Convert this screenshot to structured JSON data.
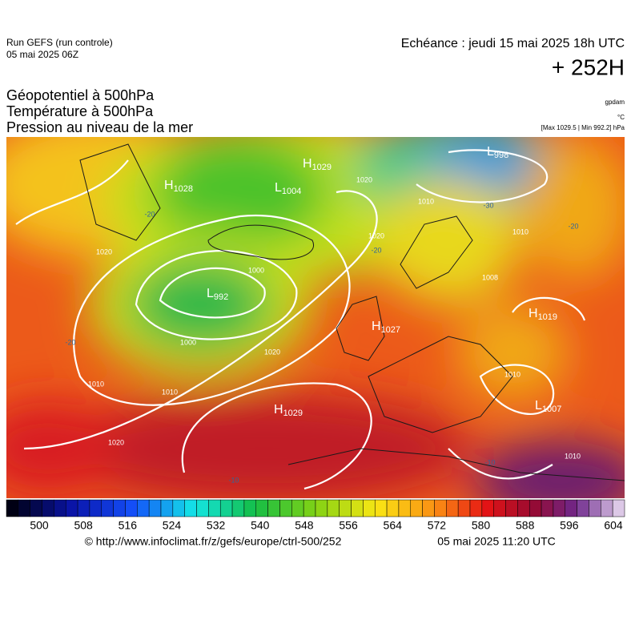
{
  "header": {
    "run": "Run GEFS (run controle)",
    "date": "05 mai 2025 06Z",
    "echeance": "Echéance : jeudi 15 mai 2025 18h UTC",
    "lead": "+ 252H"
  },
  "titles": [
    "Géopotentiel à 500hPa",
    "Température à 500hPa",
    "Pression au niveau de la mer"
  ],
  "units": {
    "geopotential": "gpdam",
    "temperature": "°C",
    "pressure": "[Max 1029.5 | Min 992.2] hPa"
  },
  "map": {
    "centers": [
      {
        "type": "H",
        "value": "1029"
      },
      {
        "type": "L",
        "value": "1004"
      },
      {
        "type": "L",
        "value": "992"
      },
      {
        "type": "H",
        "value": "1029"
      },
      {
        "type": "H",
        "value": "1019"
      },
      {
        "type": "L",
        "value": "1007"
      },
      {
        "type": "L",
        "value": "998"
      },
      {
        "type": "H",
        "value": "1028"
      },
      {
        "type": "H",
        "value": "1027"
      }
    ],
    "isobar_labels": [
      "1020",
      "1010",
      "1000",
      "1000",
      "1010",
      "1020",
      "1020",
      "1010",
      "1010",
      "1020",
      "1020",
      "1010",
      "1008",
      "1010"
    ],
    "isotherm_labels": [
      "-20",
      "-20",
      "-20",
      "-30",
      "-20",
      "-10",
      "-10"
    ]
  },
  "colorbar": {
    "ticks": [
      "500",
      "508",
      "516",
      "524",
      "532",
      "540",
      "548",
      "556",
      "564",
      "572",
      "580",
      "588",
      "596",
      "604"
    ]
  },
  "footer": {
    "url": "© http://www.infoclimat.fr/z/gefs/europe/ctrl-500/252",
    "time": "05 mai 2025 11:20 UTC"
  }
}
